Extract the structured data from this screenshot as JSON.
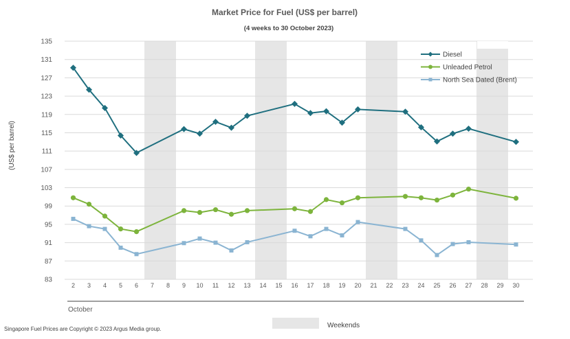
{
  "chart_data": {
    "type": "line",
    "title": "Market Price for Fuel (US$ per barrel)",
    "subtitle": "(4 weeks to 30 October 2023)",
    "ylabel": "(US$ per barrel)",
    "xlabel": "October",
    "ylim": [
      83,
      135
    ],
    "yticks": [
      83,
      87,
      91,
      95,
      99,
      103,
      107,
      111,
      115,
      119,
      123,
      127,
      131,
      135
    ],
    "x_days": [
      2,
      3,
      4,
      5,
      6,
      7,
      8,
      9,
      10,
      11,
      12,
      13,
      14,
      15,
      16,
      17,
      18,
      19,
      20,
      21,
      22,
      23,
      24,
      25,
      26,
      27,
      28,
      29,
      30
    ],
    "weekends": [
      [
        7,
        8
      ],
      [
        14,
        15
      ],
      [
        21,
        22
      ],
      [
        28,
        29
      ]
    ],
    "series": [
      {
        "name": "Diesel",
        "color": "#1f6f7f",
        "marker": "diamond",
        "points": [
          [
            2,
            129.2
          ],
          [
            3,
            124.4
          ],
          [
            4,
            120.4
          ],
          [
            5,
            114.4
          ],
          [
            6,
            110.6
          ],
          [
            9,
            115.8
          ],
          [
            10,
            114.8
          ],
          [
            11,
            117.4
          ],
          [
            12,
            116.1
          ],
          [
            13,
            118.7
          ],
          [
            16,
            121.3
          ],
          [
            17,
            119.3
          ],
          [
            18,
            119.7
          ],
          [
            19,
            117.2
          ],
          [
            20,
            120.1
          ],
          [
            23,
            119.6
          ],
          [
            24,
            116.2
          ],
          [
            25,
            113.1
          ],
          [
            26,
            114.8
          ],
          [
            27,
            115.9
          ],
          [
            30,
            113.0
          ]
        ]
      },
      {
        "name": "Unleaded Petrol",
        "color": "#7db43c",
        "marker": "circle",
        "points": [
          [
            2,
            100.8
          ],
          [
            3,
            99.4
          ],
          [
            4,
            96.8
          ],
          [
            5,
            94.0
          ],
          [
            6,
            93.4
          ],
          [
            9,
            98.0
          ],
          [
            10,
            97.6
          ],
          [
            11,
            98.2
          ],
          [
            12,
            97.2
          ],
          [
            13,
            98.0
          ],
          [
            16,
            98.4
          ],
          [
            17,
            97.8
          ],
          [
            18,
            100.4
          ],
          [
            19,
            99.7
          ],
          [
            20,
            100.8
          ],
          [
            23,
            101.1
          ],
          [
            24,
            100.8
          ],
          [
            25,
            100.3
          ],
          [
            26,
            101.4
          ],
          [
            27,
            102.7
          ],
          [
            30,
            100.7
          ]
        ]
      },
      {
        "name": "North Sea Dated (Brent)",
        "color": "#8ab4d2",
        "marker": "square",
        "points": [
          [
            2,
            96.2
          ],
          [
            3,
            94.6
          ],
          [
            4,
            94.0
          ],
          [
            5,
            89.9
          ],
          [
            6,
            88.5
          ],
          [
            9,
            90.9
          ],
          [
            10,
            91.9
          ],
          [
            11,
            91.0
          ],
          [
            12,
            89.3
          ],
          [
            13,
            91.1
          ],
          [
            16,
            93.6
          ],
          [
            17,
            92.4
          ],
          [
            18,
            94.0
          ],
          [
            19,
            92.6
          ],
          [
            20,
            95.5
          ],
          [
            23,
            94.0
          ],
          [
            24,
            91.5
          ],
          [
            25,
            88.3
          ],
          [
            26,
            90.7
          ],
          [
            27,
            91.1
          ],
          [
            30,
            90.6
          ]
        ]
      }
    ],
    "legend_position": "top-right",
    "legend_weekends_label": "Weekends"
  },
  "footer": {
    "copyright": "Singapore Fuel Prices are Copyright © 2023 Argus Media group."
  }
}
